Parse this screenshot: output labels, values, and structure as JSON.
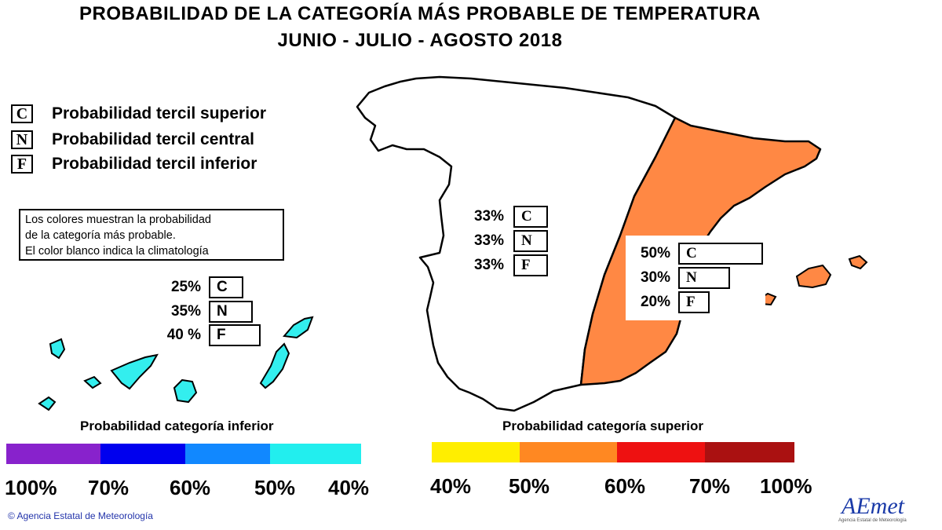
{
  "header": {
    "title": "PROBABILIDAD DE LA CATEGORÍA MÁS PROBABLE DE  TEMPERATURA",
    "subtitle": "JUNIO - JULIO - AGOSTO 2018"
  },
  "legend": {
    "items": [
      {
        "symbol": "C",
        "label": "Probabilidad  tercil superior"
      },
      {
        "symbol": "N",
        "label": "Probabilidad  tercil central"
      },
      {
        "symbol": "F",
        "label": "Probabilidad  tercil inferior"
      }
    ],
    "note": [
      "Los colores muestran la probabilidad",
      "de la categoría más probable.",
      "El color blanco indica la climatología"
    ]
  },
  "regions": {
    "canarias": {
      "fill": "#33eeee",
      "probabilities": [
        {
          "pct": "25%",
          "symbol": "C",
          "value": 25
        },
        {
          "pct": "35%",
          "symbol": "N",
          "value": 35
        },
        {
          "pct": "40 %",
          "symbol": "F",
          "value": 40
        }
      ]
    },
    "peninsula_west": {
      "fill": "#ffffff",
      "probabilities": [
        {
          "pct": "33%",
          "symbol": "C",
          "value": 33
        },
        {
          "pct": "33%",
          "symbol": "N",
          "value": 33
        },
        {
          "pct": "33%",
          "symbol": "F",
          "value": 33
        }
      ]
    },
    "peninsula_east_baleares": {
      "fill": "#ff8844",
      "probabilities": [
        {
          "pct": "50%",
          "symbol": "C",
          "value": 50
        },
        {
          "pct": "30%",
          "symbol": "N",
          "value": 30
        },
        {
          "pct": "20%",
          "symbol": "F",
          "value": 20
        }
      ]
    }
  },
  "scales": {
    "inferior": {
      "label": "Probabilidad  categoría inferior",
      "colors": [
        "#8822cc",
        "#0000ee",
        "#1188ff",
        "#22eeee"
      ],
      "ticks": [
        "100%",
        "70%",
        "60%",
        "50%",
        "40%"
      ]
    },
    "superior": {
      "label": "Probabilidad  categoría superior",
      "colors": [
        "#ffee00",
        "#ff8822",
        "#ee1111",
        "#aa1111"
      ],
      "ticks": [
        "40%",
        "50%",
        "60%",
        "70%",
        "100%"
      ]
    }
  },
  "footer": {
    "agency": "© Agencia Estatal de Meteorología",
    "logo": "AEmet",
    "logo_sub": "Agencia Estatal de Meteorología"
  }
}
